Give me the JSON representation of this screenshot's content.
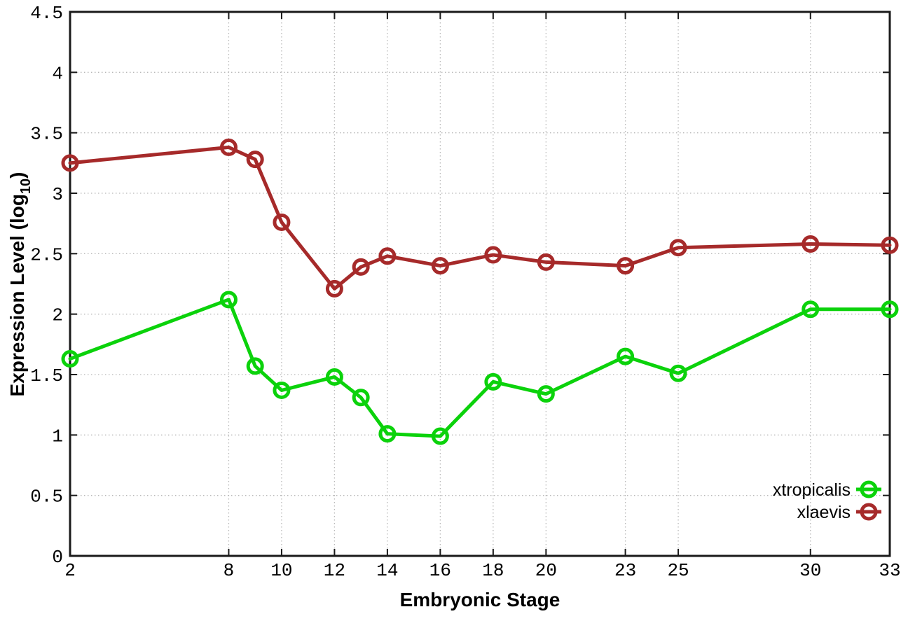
{
  "chart_data": {
    "type": "line",
    "title": "",
    "xlabel": "Embryonic Stage",
    "ylabel": "Expression Level (log10)",
    "ylabel_parts": {
      "main": "Expression Level (log",
      "sub": "10",
      "end": ")"
    },
    "xlim": [
      2,
      33
    ],
    "ylim": [
      0,
      4.5
    ],
    "xticks": [
      2,
      8,
      10,
      12,
      14,
      16,
      18,
      20,
      23,
      25,
      30,
      33
    ],
    "yticks": [
      0,
      0.5,
      1,
      1.5,
      2,
      2.5,
      3,
      3.5,
      4,
      4.5
    ],
    "grid": true,
    "grid_style": "dotted",
    "legend_position": "bottom-right",
    "x": [
      2,
      8,
      9,
      10,
      12,
      13,
      14,
      16,
      18,
      20,
      23,
      25,
      30,
      33
    ],
    "series": [
      {
        "name": "xtropicalis",
        "color": "#0bd20b",
        "values": [
          1.63,
          2.12,
          1.57,
          1.37,
          1.48,
          1.31,
          1.01,
          0.99,
          1.44,
          1.34,
          1.65,
          1.51,
          2.04,
          2.04
        ]
      },
      {
        "name": "xlaevis",
        "color": "#a62a2a",
        "values": [
          3.25,
          3.38,
          3.28,
          2.76,
          2.21,
          2.39,
          2.48,
          2.4,
          2.49,
          2.43,
          2.4,
          2.55,
          2.58,
          2.57
        ]
      }
    ],
    "colors": {
      "background": "#ffffff",
      "border": "#1a1a1a",
      "grid": "#b8b8b8",
      "text": "#000000"
    }
  }
}
